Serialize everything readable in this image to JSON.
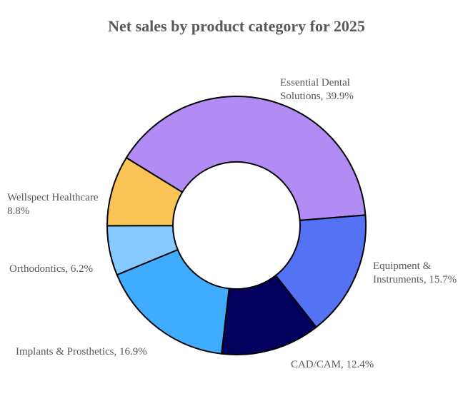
{
  "chart_data": {
    "type": "pie",
    "style": "donut",
    "title": "Net sales by product category for 2025",
    "slices": [
      {
        "name": "Essential Dental Solutions",
        "value": 39.9,
        "label_lines": [
          "Essential Dental",
          "Solutions, 39.9%"
        ],
        "color": "#B28CF4"
      },
      {
        "name": "Equipment & Instruments",
        "value": 15.7,
        "label_lines": [
          "Equipment &",
          "Instruments, 15.7%"
        ],
        "color": "#5572F4"
      },
      {
        "name": "CAD/CAM",
        "value": 12.4,
        "label_lines": [
          "CAD/CAM, 12.4%"
        ],
        "color": "#04005E"
      },
      {
        "name": "Implants & Prosthetics",
        "value": 16.9,
        "label_lines": [
          "Implants & Prosthetics, 16.9%"
        ],
        "color": "#40ACFF"
      },
      {
        "name": "Orthodontics",
        "value": 6.2,
        "label_lines": [
          "Orthodontics, 6.2%"
        ],
        "color": "#84C9FF"
      },
      {
        "name": "Wellspect Healthcare",
        "value": 8.8,
        "label_lines": [
          "Wellspect Healthcare",
          "8.8%"
        ],
        "color": "#FAC355"
      }
    ],
    "legend": "none"
  }
}
